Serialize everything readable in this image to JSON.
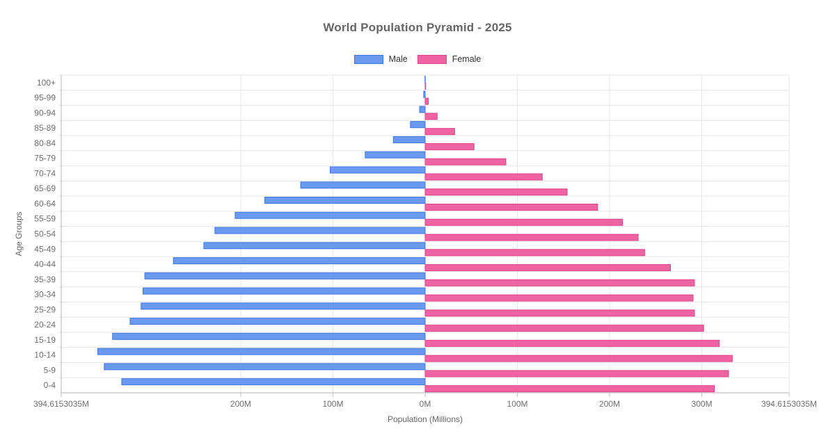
{
  "title": "World Population Pyramid - 2025",
  "colors": {
    "male_fill": "#6a99f0",
    "male_border": "#3f77e0",
    "female_fill": "#ee64a2",
    "female_border": "#e2408c",
    "grid": "#e6e6e6",
    "axis_line": "#b3b3b3",
    "tick_mark": "#c2c2c2",
    "title_text": "#666666",
    "tick_text": "#6e6e6e",
    "axis_title_text": "#666666"
  },
  "chart_data": {
    "type": "bar",
    "orientation": "horizontal-population-pyramid",
    "title": "World Population Pyramid - 2025",
    "xlabel": "Population (Millions)",
    "ylabel": "Age Groups",
    "unit": "M",
    "x_axis_max_abs": 394.6153035,
    "grid": true,
    "legend_position": "top",
    "categories": [
      "100+",
      "95-99",
      "90-94",
      "85-89",
      "80-84",
      "75-79",
      "70-74",
      "65-69",
      "60-64",
      "55-59",
      "50-54",
      "45-49",
      "40-44",
      "35-39",
      "30-34",
      "25-29",
      "20-24",
      "15-19",
      "10-14",
      "5-9",
      "0-4"
    ],
    "series": [
      {
        "name": "Male",
        "direction": "left",
        "values": [
          0.2,
          1.6,
          6,
          16,
          34.5,
          65,
          103,
          135,
          174,
          206,
          228,
          240,
          273,
          304,
          306,
          308,
          320,
          339,
          355,
          348,
          329
        ]
      },
      {
        "name": "Female",
        "direction": "right",
        "values": [
          0.6,
          3.5,
          13,
          32,
          53,
          87.5,
          127,
          154,
          187,
          214,
          231,
          238,
          266,
          292,
          290.5,
          292,
          302,
          319,
          333,
          329,
          313.5
        ]
      }
    ],
    "x_ticks": [
      {
        "pos": -394.6153035,
        "label": "394.6153035M"
      },
      {
        "pos": -200,
        "label": "200M"
      },
      {
        "pos": -100,
        "label": "100M"
      },
      {
        "pos": 0,
        "label": "0M"
      },
      {
        "pos": 100,
        "label": "100M"
      },
      {
        "pos": 200,
        "label": "200M"
      },
      {
        "pos": 300,
        "label": "300M"
      },
      {
        "pos": 394.6153035,
        "label": "394.6153035M"
      }
    ]
  }
}
